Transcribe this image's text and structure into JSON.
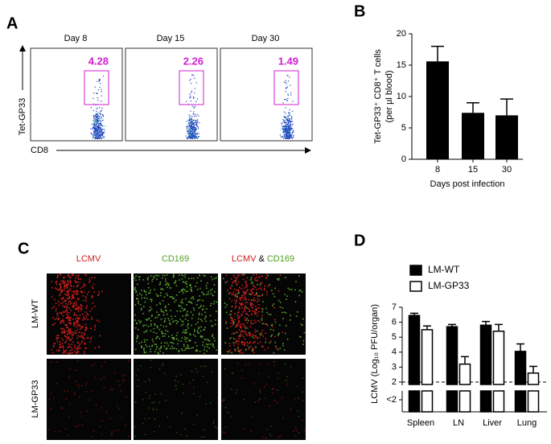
{
  "panel_labels": [
    "A",
    "B",
    "C",
    "D"
  ],
  "flow": {
    "y_label": "Tet-GP33",
    "x_label": "CD8",
    "days": [
      "Day 8",
      "Day 15",
      "Day 30"
    ],
    "gate_values": [
      4.28,
      2.26,
      1.49
    ]
  },
  "microscopy": {
    "columns": [
      "LCMV",
      "CD169"
    ],
    "merge": [
      "LCMV",
      "&",
      "CD169"
    ],
    "rows": [
      "LM-WT",
      "LM-GP33"
    ]
  },
  "chart_data": [
    {
      "type": "bar",
      "y_label": [
        "Tet-GP33⁺ CD8⁺ T cells",
        "(per µl blood)"
      ],
      "x_label": "Days post infection",
      "categories": [
        "8",
        "15",
        "30"
      ],
      "values": [
        15.6,
        7.4,
        7.0
      ],
      "errors": [
        2.4,
        1.6,
        2.6
      ],
      "color": "#000000",
      "ylim": [
        0,
        20
      ],
      "yticks": [
        0,
        5,
        10,
        15,
        20
      ]
    },
    {
      "type": "grouped_bar",
      "y_label": "LCMV (Log₁₀ PFU/organ)",
      "categories": [
        "Spleen",
        "LN",
        "Liver",
        "Lung"
      ],
      "series": [
        {
          "name": "LM-WT",
          "color": "#000000",
          "values": [
            6.45,
            5.7,
            5.8,
            4.05
          ],
          "errors": [
            0.15,
            0.15,
            0.25,
            0.5
          ]
        },
        {
          "name": "LM-GP33",
          "color": "#ffffff",
          "values": [
            5.5,
            3.2,
            5.4,
            2.6
          ],
          "errors": [
            0.25,
            0.5,
            0.45,
            0.45
          ]
        }
      ],
      "ylim": [
        2,
        7
      ],
      "yticks": [
        2,
        3,
        4,
        5,
        6,
        7
      ],
      "break_label": "<2",
      "reference_line": 2
    }
  ]
}
